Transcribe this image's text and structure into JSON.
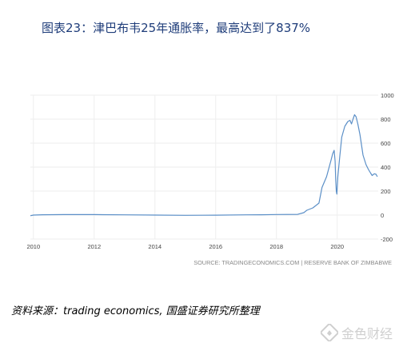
{
  "title": "图表23：津巴布韦25年通胀率，最高达到了837%",
  "source_note": "资料来源：trading economics, 国盛证券研究所整理",
  "watermark_text": "金色财经",
  "colors": {
    "line": "#5b8fc7",
    "title": "#1f3d7a",
    "grid": "#eeeeee",
    "axis_text": "#444444"
  },
  "chart_data": {
    "type": "line",
    "title": "",
    "xlabel": "",
    "ylabel": "",
    "xlim": [
      2009.9,
      2021.35
    ],
    "ylim": [
      -200,
      1000
    ],
    "x_ticks": [
      "2010",
      "2012",
      "2014",
      "2016",
      "2018",
      "2020"
    ],
    "x_tick_values": [
      2010,
      2012,
      2014,
      2016,
      2018,
      2020
    ],
    "y_ticks": [
      "1000",
      "800",
      "600",
      "400",
      "200",
      "0",
      "-200"
    ],
    "y_tick_values": [
      1000,
      800,
      600,
      400,
      200,
      0,
      -200
    ],
    "grid": true,
    "attribution": "SOURCE: TRADINGECONOMICS.COM | RESERVE BANK OF ZIMBABWE",
    "series": [
      {
        "values": [
          [
            2009.9,
            -5
          ],
          [
            2010.0,
            0
          ],
          [
            2010.3,
            3
          ],
          [
            2011.0,
            4
          ],
          [
            2012.0,
            4
          ],
          [
            2013.0,
            2
          ],
          [
            2014.0,
            0
          ],
          [
            2015.0,
            -2
          ],
          [
            2016.0,
            -1
          ],
          [
            2017.0,
            2
          ],
          [
            2017.5,
            3
          ],
          [
            2018.0,
            5
          ],
          [
            2018.7,
            6
          ],
          [
            2018.9,
            20
          ],
          [
            2019.0,
            40
          ],
          [
            2019.2,
            60
          ],
          [
            2019.4,
            100
          ],
          [
            2019.5,
            230
          ],
          [
            2019.65,
            320
          ],
          [
            2019.8,
            460
          ],
          [
            2019.85,
            510
          ],
          [
            2019.9,
            540
          ],
          [
            2019.93,
            450
          ],
          [
            2019.95,
            300
          ],
          [
            2019.97,
            200
          ],
          [
            2019.99,
            175
          ],
          [
            2020.02,
            320
          ],
          [
            2020.08,
            480
          ],
          [
            2020.15,
            650
          ],
          [
            2020.25,
            740
          ],
          [
            2020.35,
            780
          ],
          [
            2020.42,
            790
          ],
          [
            2020.47,
            760
          ],
          [
            2020.52,
            800
          ],
          [
            2020.57,
            837
          ],
          [
            2020.62,
            820
          ],
          [
            2020.68,
            760
          ],
          [
            2020.75,
            670
          ],
          [
            2020.85,
            500
          ],
          [
            2020.95,
            420
          ],
          [
            2021.03,
            380
          ],
          [
            2021.1,
            350
          ],
          [
            2021.15,
            330
          ],
          [
            2021.22,
            345
          ],
          [
            2021.28,
            340
          ],
          [
            2021.32,
            320
          ]
        ]
      }
    ]
  }
}
